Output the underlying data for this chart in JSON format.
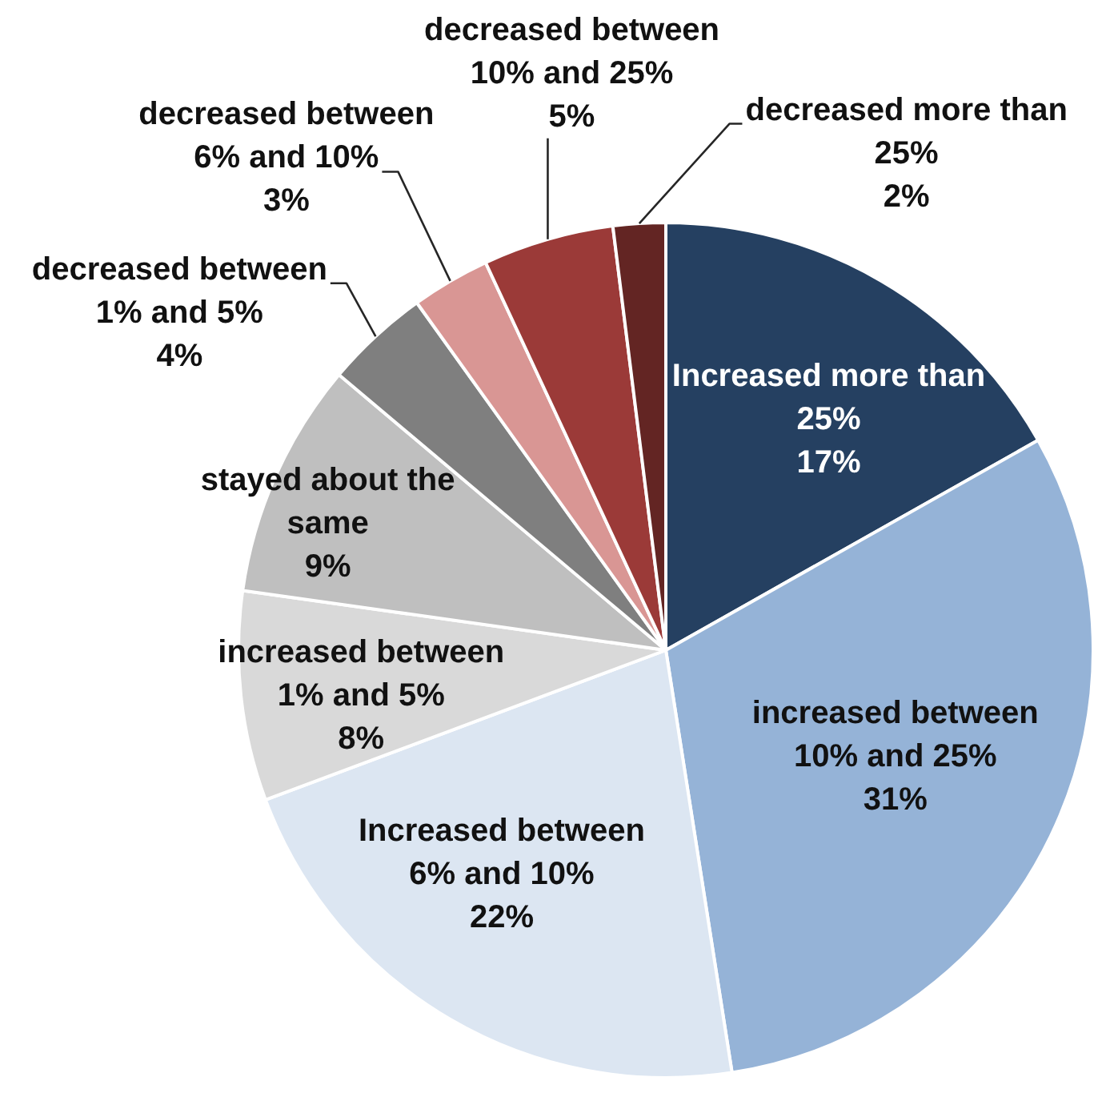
{
  "chart_data": {
    "type": "pie",
    "categories": [
      "Increased more than 25%",
      "increased between 10% and 25%",
      "Increased between 6% and 10%",
      "increased between 1% and 5%",
      "stayed about the same",
      "decreased between 1% and 5%",
      "decreased between 6% and 10%",
      "decreased between 10% and 25%",
      "decreased more than 25%"
    ],
    "values": [
      17,
      31,
      22,
      8,
      9,
      4,
      3,
      5,
      2
    ],
    "value_labels": [
      "17%",
      "31%",
      "22%",
      "8%",
      "9%",
      "4%",
      "3%",
      "5%",
      "2%"
    ],
    "colors": [
      "#254061",
      "#95b3d7",
      "#dce6f2",
      "#d9d9d9",
      "#bfbfbf",
      "#7f7f7f",
      "#d99694",
      "#9b3a38",
      "#632523"
    ]
  }
}
